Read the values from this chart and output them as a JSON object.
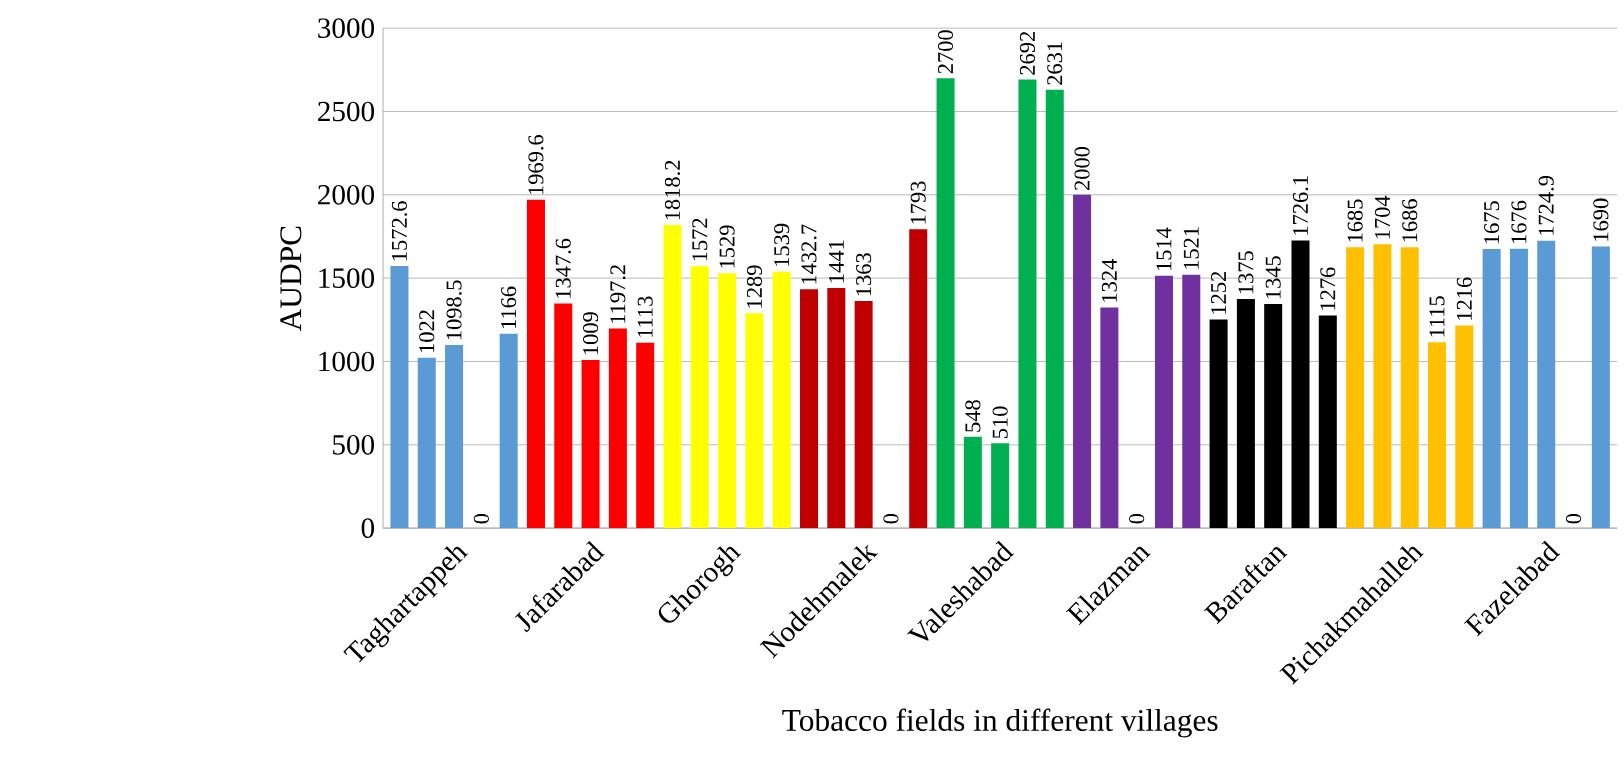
{
  "chart_data": {
    "type": "bar",
    "xlabel": "Tobacco fields in different villages",
    "ylabel": "AUDPC",
    "categories": [
      null,
      null,
      "Taghartappeh",
      null,
      null,
      null,
      null,
      "Jafarabad",
      null,
      null,
      null,
      null,
      "Ghorogh",
      null,
      null,
      null,
      null,
      "Nodehmalek",
      null,
      null,
      null,
      null,
      "Valeshabad",
      null,
      null,
      null,
      null,
      "Elazman",
      null,
      null,
      null,
      null,
      "Baraftan",
      null,
      null,
      null,
      null,
      "Pichakmahalleh",
      null,
      null,
      null,
      null,
      "Fazelabad",
      null,
      null
    ],
    "values": [
      1572.6,
      1022,
      1098.5,
      0,
      1166,
      1969.6,
      1347.6,
      1009,
      1197.2,
      1113,
      1818.2,
      1572,
      1529,
      1289,
      1539,
      1432.7,
      1441,
      1363,
      0,
      1793,
      2700,
      548,
      510,
      2692,
      2631,
      2000,
      1324,
      0,
      1514,
      1521,
      1252,
      1375,
      1345,
      1726.1,
      1276,
      1685,
      1704,
      1686,
      1115,
      1216,
      1675,
      1676,
      1724.9,
      0,
      1690
    ],
    "colors": [
      "#5b9bd5",
      "#5b9bd5",
      "#5b9bd5",
      "#5b9bd5",
      "#5b9bd5",
      "#ff0000",
      "#ff0000",
      "#ff0000",
      "#ff0000",
      "#ff0000",
      "#ffff00",
      "#ffff00",
      "#ffff00",
      "#ffff00",
      "#ffff00",
      "#c00000",
      "#c00000",
      "#c00000",
      "#c00000",
      "#c00000",
      "#00b050",
      "#00b050",
      "#00b050",
      "#00b050",
      "#00b050",
      "#7030a0",
      "#7030a0",
      "#7030a0",
      "#7030a0",
      "#7030a0",
      "#000000",
      "#000000",
      "#000000",
      "#000000",
      "#000000",
      "#ffc000",
      "#ffc000",
      "#ffc000",
      "#ffc000",
      "#ffc000",
      "#5b9bd5",
      "#5b9bd5",
      "#5b9bd5",
      "#5b9bd5",
      "#5b9bd5"
    ],
    "ylim": [
      0,
      3000
    ],
    "yticks": [
      0,
      500,
      1000,
      1500,
      2000,
      2500,
      3000
    ],
    "grid": "y",
    "data_labels": true
  }
}
